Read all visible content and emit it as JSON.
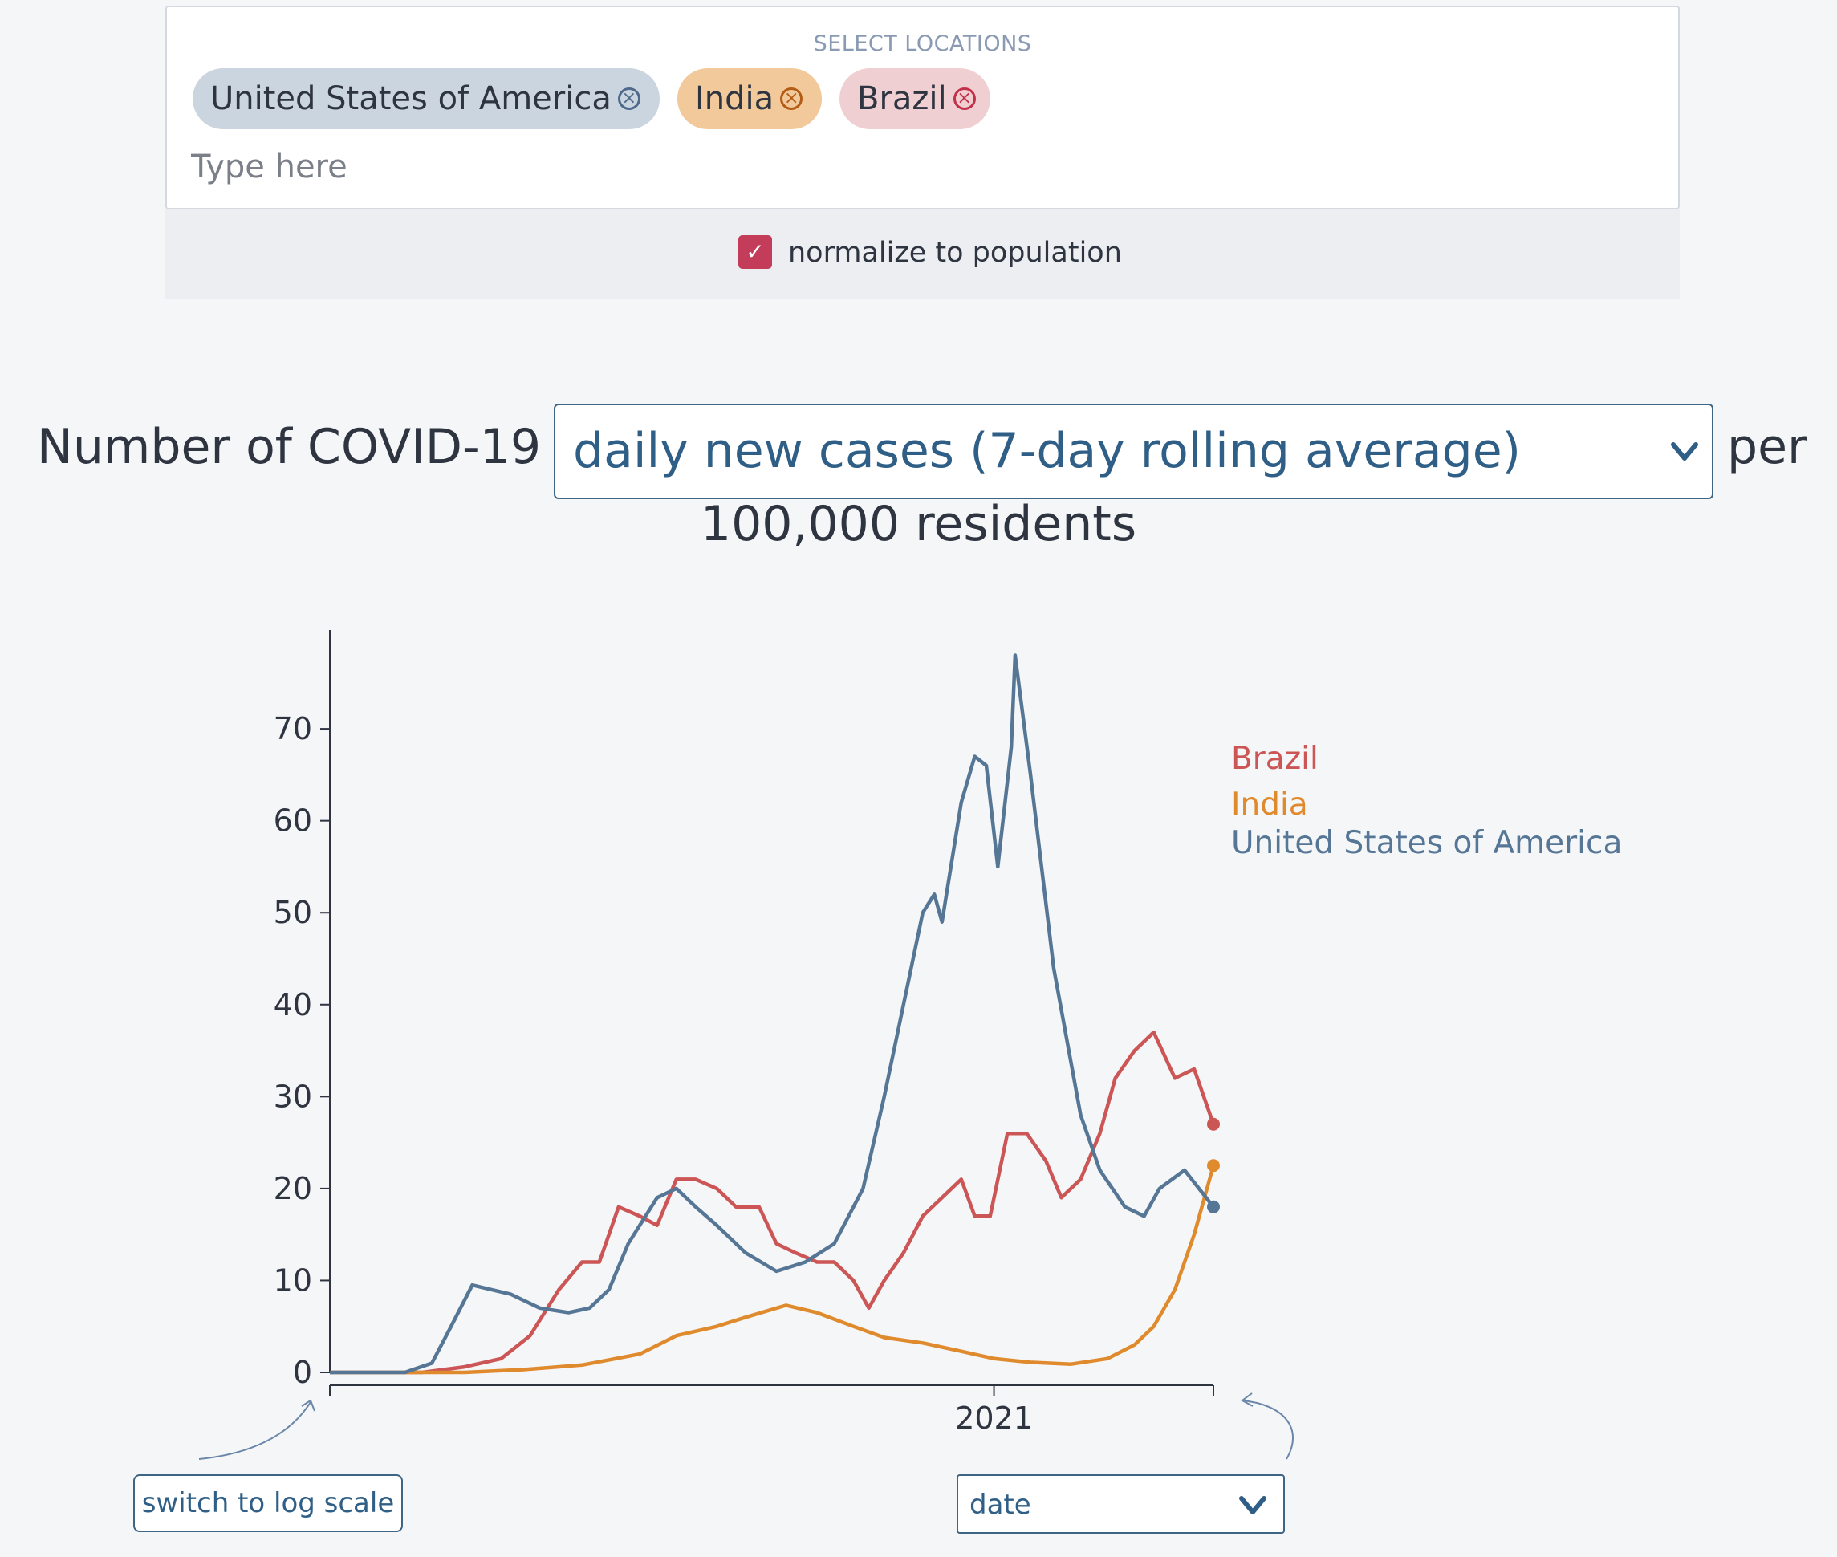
{
  "locations": {
    "title": "SELECT LOCATIONS",
    "chips": [
      {
        "label": "United States of America",
        "color": "#cbd5df",
        "icon": "remove-circle-icon"
      },
      {
        "label": "India",
        "color": "#f2c99a",
        "icon": "remove-circle-icon"
      },
      {
        "label": "Brazil",
        "color": "#f0cfd2",
        "icon": "remove-circle-icon"
      }
    ],
    "input_placeholder": "Type here"
  },
  "normalize": {
    "label": "normalize to population",
    "checked": true,
    "accent": "#c33d5a"
  },
  "heading": {
    "prefix": "Number of COVID-19",
    "metric": "daily new cases (7-day rolling average)",
    "suffix": "per",
    "line2": "100,000 residents"
  },
  "controls": {
    "log_scale_button": "switch to log scale",
    "x_axis_select": "date"
  },
  "chart_data": {
    "type": "line",
    "x_tick_label": "2021",
    "ylim": [
      0,
      79
    ],
    "yticks": [
      0,
      10,
      20,
      30,
      40,
      50,
      60,
      70
    ],
    "y_tick_labels": [
      "0",
      "10",
      "20",
      "30",
      "40",
      "50",
      "60",
      "70"
    ],
    "x_range": [
      "2020-01-22",
      "2021-04-25"
    ],
    "series": [
      {
        "name": "Brazil",
        "color": "#cc5555",
        "points": [
          [
            "2020-01-22",
            0
          ],
          [
            "2020-03-10",
            0
          ],
          [
            "2020-04-01",
            0.6
          ],
          [
            "2020-04-20",
            1.5
          ],
          [
            "2020-05-05",
            4
          ],
          [
            "2020-05-20",
            9
          ],
          [
            "2020-06-01",
            12
          ],
          [
            "2020-06-10",
            12
          ],
          [
            "2020-06-20",
            18
          ],
          [
            "2020-07-01",
            17
          ],
          [
            "2020-07-10",
            16
          ],
          [
            "2020-07-20",
            21
          ],
          [
            "2020-07-30",
            21
          ],
          [
            "2020-08-10",
            20
          ],
          [
            "2020-08-20",
            18
          ],
          [
            "2020-09-01",
            18
          ],
          [
            "2020-09-10",
            14
          ],
          [
            "2020-09-20",
            13
          ],
          [
            "2020-10-01",
            12
          ],
          [
            "2020-10-10",
            12
          ],
          [
            "2020-10-20",
            10
          ],
          [
            "2020-10-28",
            7
          ],
          [
            "2020-11-05",
            10
          ],
          [
            "2020-11-15",
            13
          ],
          [
            "2020-11-25",
            17
          ],
          [
            "2020-12-05",
            19
          ],
          [
            "2020-12-15",
            21
          ],
          [
            "2020-12-22",
            17
          ],
          [
            "2020-12-30",
            17
          ],
          [
            "2021-01-08",
            26
          ],
          [
            "2021-01-18",
            26
          ],
          [
            "2021-01-28",
            23
          ],
          [
            "2021-02-05",
            19
          ],
          [
            "2021-02-15",
            21
          ],
          [
            "2021-02-25",
            26
          ],
          [
            "2021-03-05",
            32
          ],
          [
            "2021-03-15",
            35
          ],
          [
            "2021-03-25",
            37
          ],
          [
            "2021-04-05",
            32
          ],
          [
            "2021-04-15",
            33
          ],
          [
            "2021-04-25",
            27
          ]
        ]
      },
      {
        "name": "India",
        "color": "#e08a2e",
        "points": [
          [
            "2020-01-22",
            0
          ],
          [
            "2020-04-01",
            0
          ],
          [
            "2020-05-01",
            0.3
          ],
          [
            "2020-06-01",
            0.8
          ],
          [
            "2020-07-01",
            2
          ],
          [
            "2020-07-20",
            4
          ],
          [
            "2020-08-10",
            5
          ],
          [
            "2020-08-25",
            6
          ],
          [
            "2020-09-15",
            7.3
          ],
          [
            "2020-10-01",
            6.5
          ],
          [
            "2020-10-20",
            5
          ],
          [
            "2020-11-05",
            3.8
          ],
          [
            "2020-11-25",
            3.2
          ],
          [
            "2020-12-15",
            2.3
          ],
          [
            "2021-01-01",
            1.5
          ],
          [
            "2021-01-20",
            1.1
          ],
          [
            "2021-02-10",
            0.9
          ],
          [
            "2021-03-01",
            1.5
          ],
          [
            "2021-03-15",
            3
          ],
          [
            "2021-03-25",
            5
          ],
          [
            "2021-04-05",
            9
          ],
          [
            "2021-04-15",
            15
          ],
          [
            "2021-04-25",
            22.5
          ]
        ]
      },
      {
        "name": "United States of America",
        "color": "#567696",
        "points": [
          [
            "2020-01-22",
            0
          ],
          [
            "2020-03-01",
            0
          ],
          [
            "2020-03-15",
            1
          ],
          [
            "2020-03-25",
            5
          ],
          [
            "2020-04-05",
            9.5
          ],
          [
            "2020-04-15",
            9
          ],
          [
            "2020-04-25",
            8.5
          ],
          [
            "2020-05-10",
            7
          ],
          [
            "2020-05-25",
            6.5
          ],
          [
            "2020-06-05",
            7
          ],
          [
            "2020-06-15",
            9
          ],
          [
            "2020-06-25",
            14
          ],
          [
            "2020-07-10",
            19
          ],
          [
            "2020-07-20",
            20
          ],
          [
            "2020-07-30",
            18
          ],
          [
            "2020-08-10",
            16
          ],
          [
            "2020-08-25",
            13
          ],
          [
            "2020-09-10",
            11
          ],
          [
            "2020-09-25",
            12
          ],
          [
            "2020-10-10",
            14
          ],
          [
            "2020-10-25",
            20
          ],
          [
            "2020-11-05",
            30
          ],
          [
            "2020-11-15",
            40
          ],
          [
            "2020-11-25",
            50
          ],
          [
            "2020-12-01",
            52
          ],
          [
            "2020-12-05",
            49
          ],
          [
            "2020-12-15",
            62
          ],
          [
            "2020-12-22",
            67
          ],
          [
            "2020-12-28",
            66
          ],
          [
            "2021-01-03",
            55
          ],
          [
            "2021-01-10",
            68
          ],
          [
            "2021-01-12",
            78
          ],
          [
            "2021-01-20",
            65
          ],
          [
            "2021-02-01",
            44
          ],
          [
            "2021-02-15",
            28
          ],
          [
            "2021-02-25",
            22
          ],
          [
            "2021-03-10",
            18
          ],
          [
            "2021-03-20",
            17
          ],
          [
            "2021-03-28",
            20
          ],
          [
            "2021-04-10",
            22
          ],
          [
            "2021-04-25",
            18
          ]
        ]
      }
    ]
  }
}
